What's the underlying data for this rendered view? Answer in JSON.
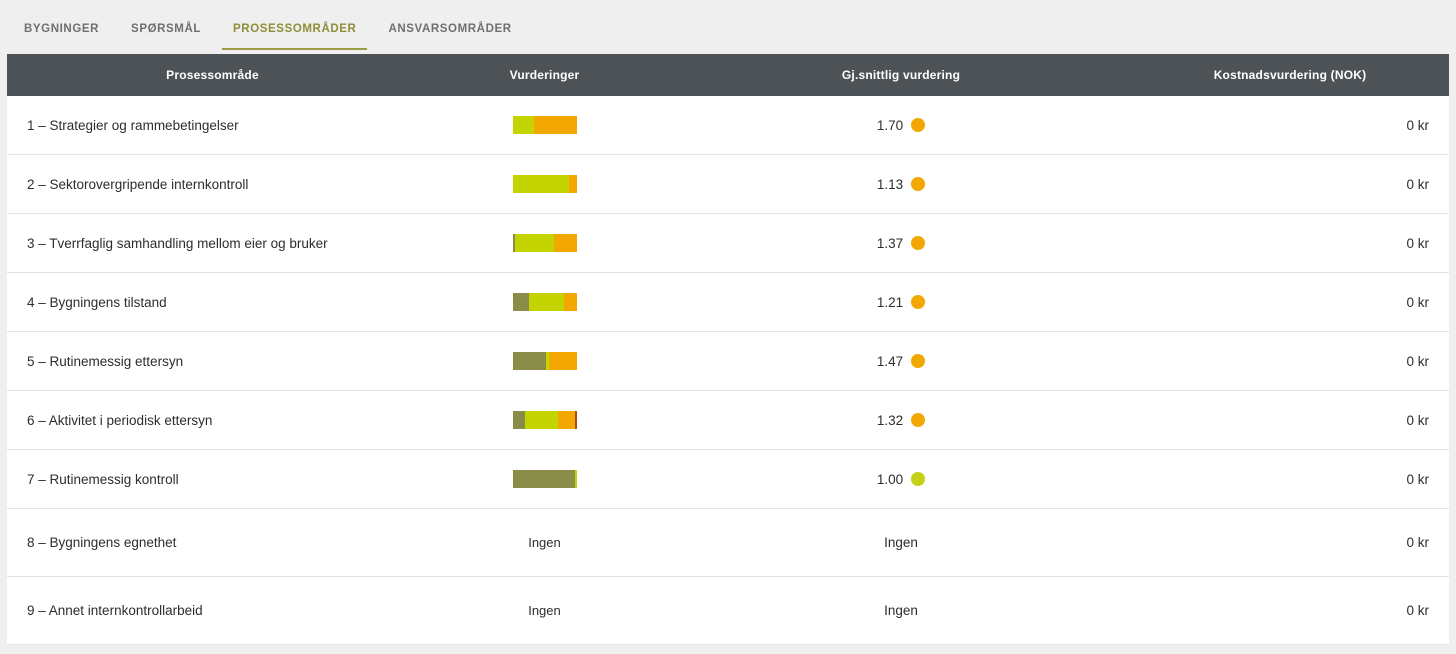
{
  "tabs": [
    {
      "label": "BYGNINGER",
      "active": false
    },
    {
      "label": "SPØRSMÅL",
      "active": false
    },
    {
      "label": "PROSESSOMRÅDER",
      "active": true
    },
    {
      "label": "ANSVARSOMRÅDER",
      "active": false
    }
  ],
  "table": {
    "columns": [
      "Prosessområde",
      "Vurderinger",
      "Gj.snittlig vurdering",
      "Kostnadsvurdering (NOK)"
    ],
    "none_label": "Ingen",
    "rows": [
      {
        "label": "1 – Strategier og rammebetingelser",
        "bar": [
          [
            "chartreuse",
            21
          ],
          [
            "orange",
            43
          ]
        ],
        "avg": "1.70",
        "dot": "orange",
        "cost": "0 kr"
      },
      {
        "label": "2 – Sektorovergripende internkontroll",
        "bar": [
          [
            "chartreuse",
            56
          ],
          [
            "orange",
            8
          ]
        ],
        "avg": "1.13",
        "dot": "orange",
        "cost": "0 kr"
      },
      {
        "label": "3 – Tverrfaglig samhandling mellom eier og bruker",
        "bar": [
          [
            "olive",
            2
          ],
          [
            "chartreuse",
            39
          ],
          [
            "orange",
            23
          ]
        ],
        "avg": "1.37",
        "dot": "orange",
        "cost": "0 kr"
      },
      {
        "label": "4 – Bygningens tilstand",
        "bar": [
          [
            "olive",
            16
          ],
          [
            "chartreuse",
            35
          ],
          [
            "orange",
            13
          ]
        ],
        "avg": "1.21",
        "dot": "orange",
        "cost": "0 kr"
      },
      {
        "label": "5 – Rutinemessig ettersyn",
        "bar": [
          [
            "olive",
            33
          ],
          [
            "chartreuse",
            3
          ],
          [
            "orange",
            28
          ]
        ],
        "avg": "1.47",
        "dot": "orange",
        "cost": "0 kr"
      },
      {
        "label": "6 – Aktivitet i periodisk ettersyn",
        "bar": [
          [
            "olive",
            12
          ],
          [
            "chartreuse",
            33
          ],
          [
            "orange",
            17
          ],
          [
            "red",
            2
          ]
        ],
        "avg": "1.32",
        "dot": "orange",
        "cost": "0 kr"
      },
      {
        "label": "7 – Rutinemessig kontroll",
        "bar": [
          [
            "olive",
            62
          ],
          [
            "chartreuse",
            2
          ]
        ],
        "avg": "1.00",
        "dot": "chartreuse",
        "cost": "0 kr"
      },
      {
        "label": "8 – Bygningens egnethet",
        "bar": null,
        "avg": "Ingen",
        "dot": null,
        "cost": "0 kr"
      },
      {
        "label": "9 – Annet internkontrollarbeid",
        "bar": null,
        "avg": "Ingen",
        "dot": null,
        "cost": "0 kr"
      }
    ]
  },
  "colors": {
    "olive": "#8a8d4a",
    "chartreuse": "#c3d400",
    "orange": "#f2a800",
    "red": "#b2461b",
    "dot_orange": "#f2a800",
    "dot_chartreuse": "#c6cf17",
    "header_bg": "#4c5256",
    "tab_active": "#8e8e39"
  }
}
